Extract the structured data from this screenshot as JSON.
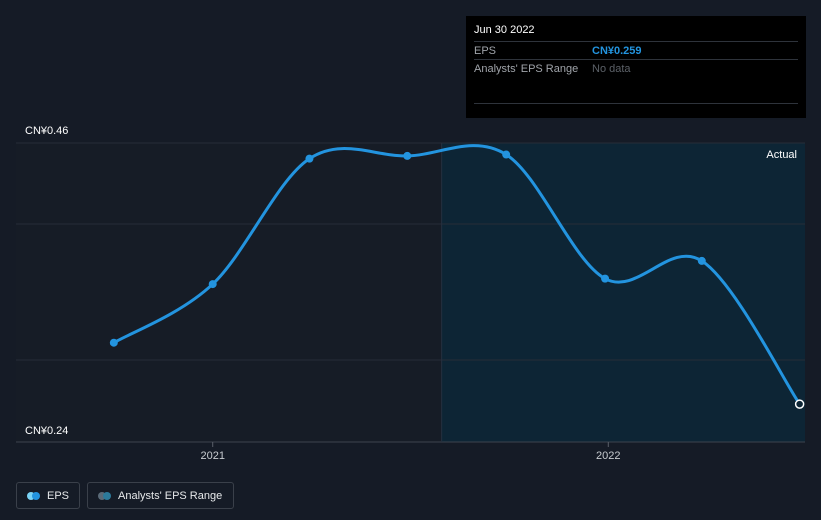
{
  "tooltip": {
    "date": "Jun 30 2022",
    "rows": [
      {
        "label": "EPS",
        "value": "CN¥0.259"
      },
      {
        "label": "Analysts' EPS Range",
        "value": "No data"
      }
    ]
  },
  "chart_data": {
    "type": "line",
    "y_tick_labels": [
      "CN¥0.46",
      "CN¥0.24"
    ],
    "ylim": [
      0.24,
      0.46
    ],
    "x_tick_labels": [
      "2021",
      "2022"
    ],
    "region_label": "Actual",
    "series": [
      {
        "name": "EPS",
        "color": "#2394df",
        "points": [
          {
            "x": "2020-09-30",
            "y": 0.304
          },
          {
            "x": "2020-12-31",
            "y": 0.347
          },
          {
            "x": "2021-03-31",
            "y": 0.439
          },
          {
            "x": "2021-06-30",
            "y": 0.441
          },
          {
            "x": "2021-09-30",
            "y": 0.442
          },
          {
            "x": "2021-12-31",
            "y": 0.351
          },
          {
            "x": "2022-03-31",
            "y": 0.364
          },
          {
            "x": "2022-06-30",
            "y": 0.259
          }
        ]
      }
    ],
    "grid": true,
    "legend_position": "bottom-left"
  },
  "legend": {
    "eps_label": "EPS",
    "eps_colors": [
      "#2394df",
      "#7ad3f5"
    ],
    "range_label": "Analysts' EPS Range",
    "range_colors": [
      "#2c7a9b",
      "#5a6a78"
    ]
  }
}
